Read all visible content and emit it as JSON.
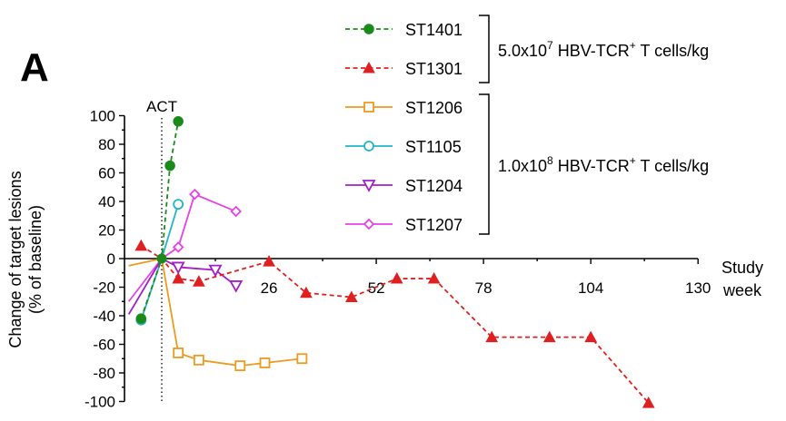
{
  "panel_label": "A",
  "chart_data": {
    "type": "line",
    "ylabel_line1": "Change of target lesions",
    "ylabel_line2": "(% of baseline)",
    "xlabel_line1": "Study",
    "xlabel_line2": "week",
    "ylim": [
      -100,
      100
    ],
    "yticks": [
      100,
      80,
      60,
      40,
      20,
      0,
      -20,
      -40,
      -60,
      -80,
      -100
    ],
    "xlim": [
      -8,
      130
    ],
    "xticks": [
      26,
      52,
      78,
      104,
      130
    ],
    "act_label": "ACT",
    "act_x": 0,
    "series": [
      {
        "name": "ST1401",
        "color": "#1a8a1a",
        "marker": "circle-filled",
        "dash": true,
        "points": [
          [
            -5,
            -42
          ],
          [
            0,
            0
          ],
          [
            2,
            65
          ],
          [
            4,
            96
          ]
        ]
      },
      {
        "name": "ST1301",
        "color": "#e02020",
        "marker": "triangle-filled",
        "dash": true,
        "points": [
          [
            -5,
            9
          ],
          [
            0,
            0
          ],
          [
            4,
            -14
          ],
          [
            9,
            -16
          ],
          [
            26,
            -2
          ],
          [
            35,
            -24
          ],
          [
            46,
            -27
          ],
          [
            57,
            -14
          ],
          [
            66,
            -14
          ],
          [
            80,
            -55
          ],
          [
            94,
            -55
          ],
          [
            104,
            -55
          ],
          [
            118,
            -101
          ]
        ]
      },
      {
        "name": "ST1206",
        "color": "#ee9a1e",
        "marker": "square-open",
        "dash": false,
        "points": [
          [
            -8,
            -5
          ],
          [
            0,
            0
          ],
          [
            4,
            -66
          ],
          [
            9,
            -71
          ],
          [
            19,
            -75
          ],
          [
            25,
            -73
          ],
          [
            34,
            -70
          ]
        ]
      },
      {
        "name": "ST1105",
        "color": "#22b6c8",
        "marker": "circle-open",
        "dash": false,
        "points": [
          [
            -5,
            -43
          ],
          [
            0,
            0
          ],
          [
            4,
            38
          ]
        ]
      },
      {
        "name": "ST1204",
        "color": "#a21fc9",
        "marker": "triangle-down-open",
        "dash": false,
        "points": [
          [
            -8,
            -39
          ],
          [
            0,
            0
          ],
          [
            4,
            -6
          ],
          [
            13,
            -8
          ],
          [
            18,
            -19
          ]
        ]
      },
      {
        "name": "ST1207",
        "color": "#e642e6",
        "marker": "diamond-open",
        "dash": false,
        "points": [
          [
            -8,
            -30
          ],
          [
            0,
            0
          ],
          [
            4,
            8
          ],
          [
            8,
            45
          ],
          [
            18,
            33
          ]
        ]
      }
    ],
    "groups": [
      {
        "prefix": "5.0x10",
        "exponent": "7",
        "suffix_main": " HBV-TCR",
        "suffix_sup": "+",
        "suffix_end": " T cells/kg"
      },
      {
        "prefix": "1.0x10",
        "exponent": "8",
        "suffix_main": " HBV-TCR",
        "suffix_sup": "+",
        "suffix_end": " T cells/kg"
      }
    ]
  }
}
